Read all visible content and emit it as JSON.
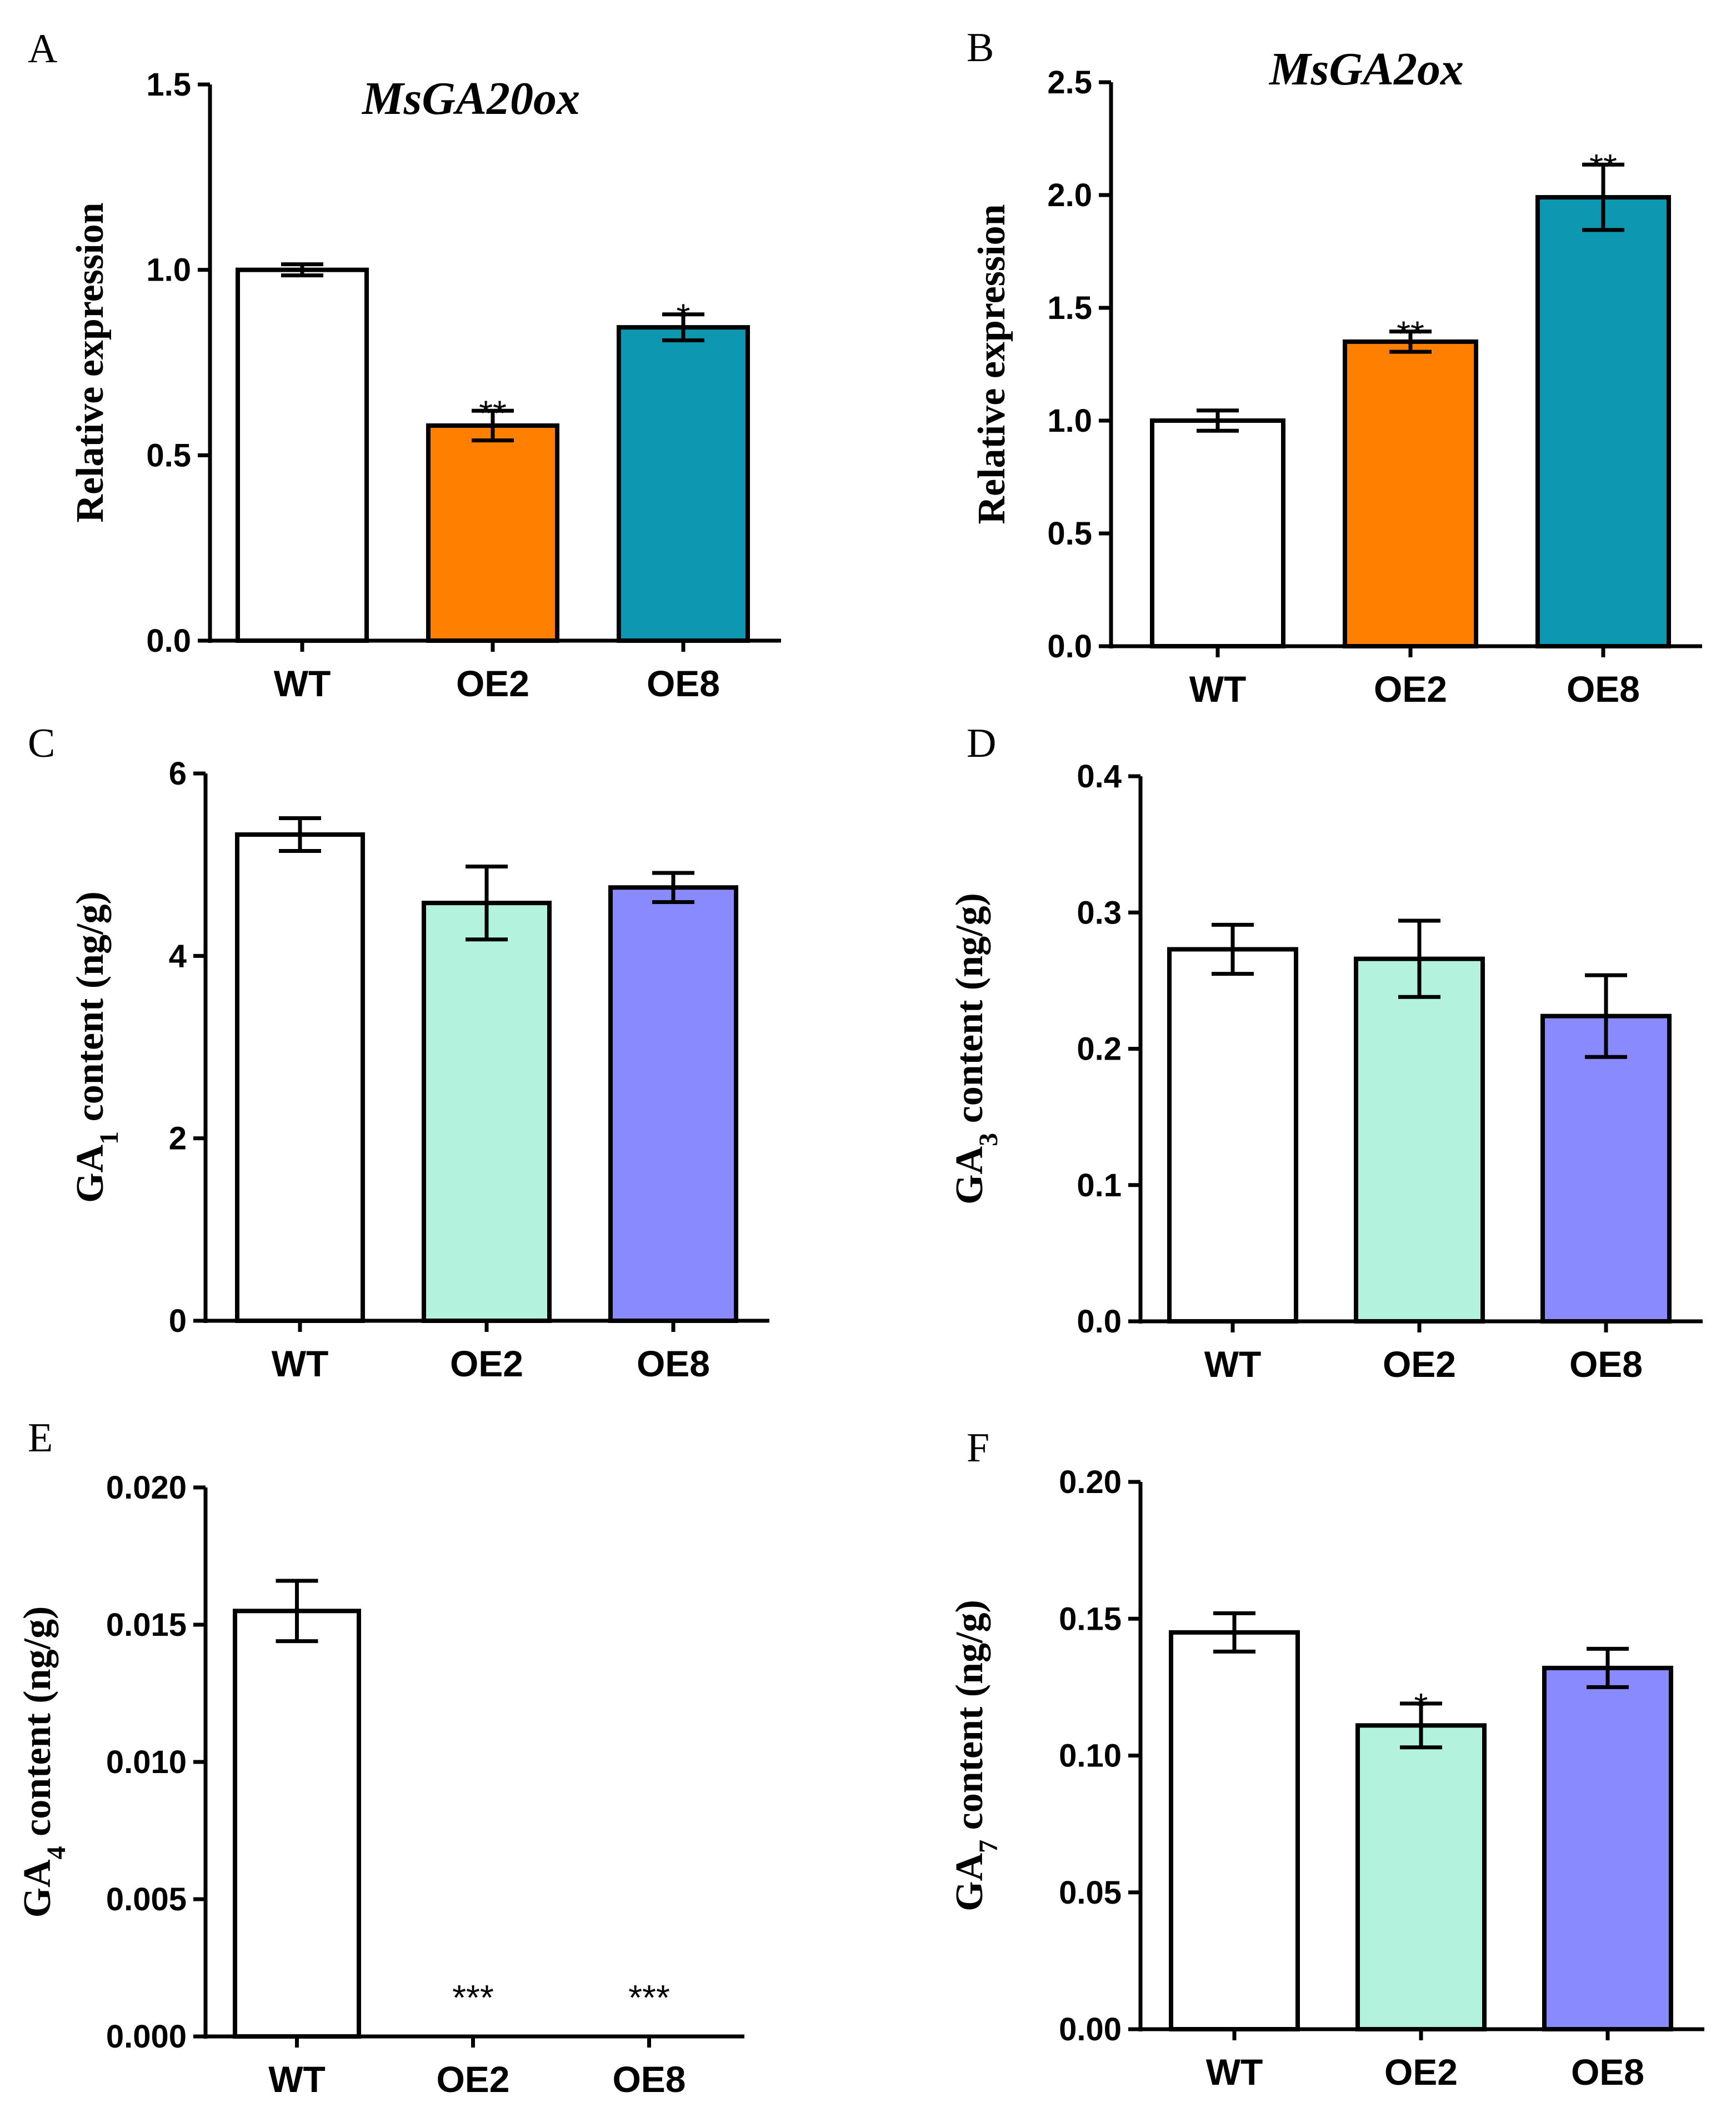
{
  "colors": {
    "wt": "#ffffff",
    "orange": "#ff7f00",
    "teal": "#0e97b1",
    "mint": "#b3f3dd",
    "periwinkle": "#8a8aff"
  },
  "chart_data": [
    {
      "panel": "A",
      "type": "bar",
      "title": "MsGA20ox",
      "ylabel": "Relative expression",
      "ylabel_sub": "",
      "ylabel_rest": "",
      "ylim": [
        0,
        1.5
      ],
      "yticks": [
        "0.0",
        "0.5",
        "1.0",
        "1.5"
      ],
      "categories": [
        "WT",
        "OE2",
        "OE8"
      ],
      "values": [
        1.0,
        0.58,
        0.845
      ],
      "errors": [
        0.015,
        0.04,
        0.035
      ],
      "significance": [
        "",
        "**",
        "*"
      ],
      "bar_colors": [
        "wt",
        "orange",
        "teal"
      ]
    },
    {
      "panel": "B",
      "type": "bar",
      "title": "MsGA2ox",
      "ylabel": "Relative expression",
      "ylabel_sub": "",
      "ylabel_rest": "",
      "ylim": [
        0,
        2.5
      ],
      "yticks": [
        "0.0",
        "0.5",
        "1.0",
        "1.5",
        "2.0",
        "2.5"
      ],
      "categories": [
        "WT",
        "OE2",
        "OE8"
      ],
      "values": [
        1.0,
        1.35,
        1.99
      ],
      "errors": [
        0.045,
        0.045,
        0.145
      ],
      "significance": [
        "",
        "**",
        "**"
      ],
      "bar_colors": [
        "wt",
        "orange",
        "teal"
      ]
    },
    {
      "panel": "C",
      "type": "bar",
      "title": "",
      "ylabel": "GA",
      "ylabel_sub": "1",
      "ylabel_rest": " content (ng/g)",
      "ylim": [
        0,
        6
      ],
      "yticks": [
        "0",
        "2",
        "4",
        "6"
      ],
      "categories": [
        "WT",
        "OE2",
        "OE8"
      ],
      "values": [
        5.33,
        4.58,
        4.75
      ],
      "errors": [
        0.18,
        0.4,
        0.16
      ],
      "significance": [
        "",
        "",
        ""
      ],
      "bar_colors": [
        "wt",
        "mint",
        "periwinkle"
      ]
    },
    {
      "panel": "D",
      "type": "bar",
      "title": "",
      "ylabel": "GA",
      "ylabel_sub": "3",
      "ylabel_rest": " content (ng/g)",
      "ylim": [
        0,
        0.4
      ],
      "yticks": [
        "0.0",
        "0.1",
        "0.2",
        "0.3",
        "0.4"
      ],
      "categories": [
        "WT",
        "OE2",
        "OE8"
      ],
      "values": [
        0.273,
        0.266,
        0.224
      ],
      "errors": [
        0.018,
        0.028,
        0.03
      ],
      "significance": [
        "",
        "",
        ""
      ],
      "bar_colors": [
        "wt",
        "mint",
        "periwinkle"
      ]
    },
    {
      "panel": "E",
      "type": "bar",
      "title": "",
      "ylabel": "GA",
      "ylabel_sub": "4",
      "ylabel_rest": " content (ng/g)",
      "ylim": [
        0,
        0.02
      ],
      "yticks": [
        "0.000",
        "0.005",
        "0.010",
        "0.015",
        "0.020"
      ],
      "categories": [
        "WT",
        "OE2",
        "OE8"
      ],
      "values": [
        0.0155,
        0,
        0
      ],
      "errors": [
        0.0011,
        0,
        0
      ],
      "significance": [
        "",
        "***",
        "***"
      ],
      "bar_colors": [
        "wt",
        "mint",
        "periwinkle"
      ]
    },
    {
      "panel": "F",
      "type": "bar",
      "title": "",
      "ylabel": "GA",
      "ylabel_sub": "7",
      "ylabel_rest": " content (ng/g)",
      "ylim": [
        0,
        0.2
      ],
      "yticks": [
        "0.00",
        "0.05",
        "0.10",
        "0.15",
        "0.20"
      ],
      "categories": [
        "WT",
        "OE2",
        "OE8"
      ],
      "values": [
        0.145,
        0.111,
        0.132
      ],
      "errors": [
        0.007,
        0.008,
        0.007
      ],
      "significance": [
        "",
        "*",
        ""
      ],
      "bar_colors": [
        "wt",
        "mint",
        "periwinkle"
      ]
    }
  ]
}
